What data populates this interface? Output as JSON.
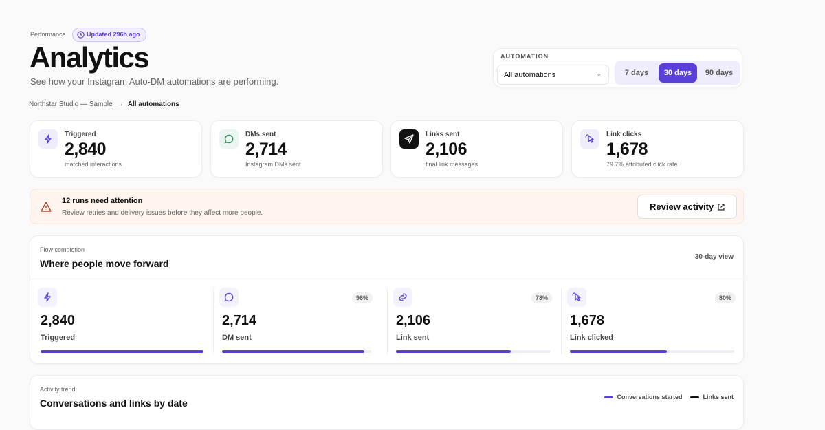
{
  "header": {
    "eyebrow": "Performance",
    "badge": "Updated 296h ago",
    "title": "Analytics",
    "subtitle": "See how your Instagram Auto-DM automations are performing.",
    "breadcrumb": [
      "Northstar Studio — Sample",
      "All automations"
    ]
  },
  "filters": {
    "label": "AUTOMATION",
    "select": "All automations",
    "ranges": [
      "7 days",
      "30 days",
      "90 days"
    ],
    "active": 1
  },
  "kpis": [
    {
      "label": "Triggered",
      "value": "2,840",
      "note": "matched interactions"
    },
    {
      "label": "DMs sent",
      "value": "2,714",
      "note": "Instagram DMs sent"
    },
    {
      "label": "Links sent",
      "value": "2,106",
      "note": "final link messages"
    },
    {
      "label": "Link clicks",
      "value": "1,678",
      "note": "79.7% attributed click rate"
    }
  ],
  "alert": {
    "title": "12 runs need attention",
    "text": "Review retries and delivery issues before they affect more people.",
    "action": "Review activity"
  },
  "flow": {
    "eyebrow": "Flow completion",
    "title": "Where people move forward",
    "view": "30-day view",
    "stages": [
      {
        "count": {
          "value": 2840,
          "label": "2,840"
        },
        "label": "Triggered"
      },
      {
        "count": {
          "value": 2714,
          "label": "2,714"
        },
        "label": "DM sent",
        "rate": "96%"
      },
      {
        "count": {
          "value": 2106,
          "label": "2,106"
        },
        "label": "Link sent",
        "rate": "78%"
      },
      {
        "count": {
          "value": 1678,
          "label": "1,678"
        },
        "label": "Link clicked",
        "rate": "80%"
      }
    ]
  },
  "trend": {
    "eyebrow": "Activity trend",
    "title": "Conversations and links by date",
    "legend": [
      {
        "name": "Conversations started",
        "color": "#5b3fd6"
      },
      {
        "name": "Links sent",
        "color": "#111111"
      }
    ]
  }
}
